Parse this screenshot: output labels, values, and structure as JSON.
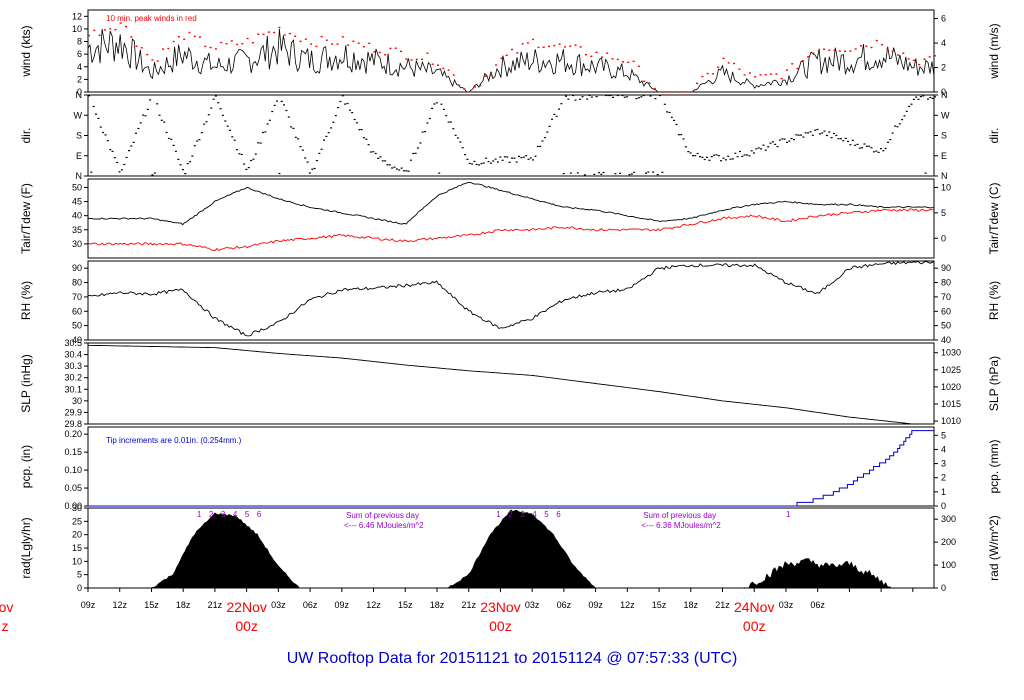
{
  "footer_title": "UW Rooftop Data for 20151121  to  20151124 @ 07:57:33  (UTC)",
  "colors": {
    "series": "#000000",
    "peak": "#ff0000",
    "dew": "#ff0000",
    "precip": "#0000cc",
    "note_blue": "#0000cc",
    "sun_labels": "#9900cc",
    "daylabel": "#ff0000",
    "title": "#0000cc"
  },
  "x_axis": {
    "ticks": [
      "09z",
      "12z",
      "15z",
      "18z",
      "21z",
      "03z",
      "06z",
      "09z",
      "12z",
      "15z",
      "18z",
      "21z",
      "03z",
      "06z",
      "09z",
      "12z",
      "15z",
      "18z",
      "21z",
      "03z",
      "06z"
    ],
    "day_labels": [
      {
        "date": "22Nov",
        "time": "00z"
      },
      {
        "date": "23Nov",
        "time": "00z"
      },
      {
        "date": "24Nov",
        "time": "00z"
      }
    ],
    "edge_label": {
      "date": "ov",
      "time": "z"
    }
  },
  "chart_data": [
    {
      "type": "line",
      "name": "wind",
      "ylabel_left": "wind (kts)",
      "ylabel_right": "wind (m/s)",
      "ylim": [
        0,
        13
      ],
      "yticks_left": [
        0,
        2,
        4,
        6,
        8,
        10,
        12
      ],
      "ylim_right": [
        0,
        6.7
      ],
      "yticks_right": [
        0,
        2,
        4,
        6
      ],
      "annotation": "10 min. peak winds in red",
      "x": [
        0,
        3,
        6,
        9,
        12,
        15,
        18,
        21,
        24,
        27,
        30,
        33,
        36,
        39,
        42,
        45,
        48,
        51,
        54,
        57,
        60,
        63,
        66,
        69,
        72,
        75,
        78
      ],
      "values": [
        7,
        8,
        3,
        6,
        4,
        5,
        7,
        5,
        6,
        5,
        4,
        3,
        0,
        4,
        5,
        5,
        4,
        3,
        0,
        0,
        3,
        1,
        2,
        5,
        5,
        6,
        4
      ],
      "peak": [
        9,
        11,
        5,
        9,
        7,
        8,
        10,
        8,
        8,
        7,
        6,
        5,
        0,
        5,
        8,
        7,
        6,
        5,
        0,
        0,
        5,
        2,
        3,
        7,
        7,
        8,
        5
      ]
    },
    {
      "type": "scatter",
      "name": "dir",
      "ylabel_left": "dir.",
      "ylabel_right": "dir.",
      "ylim": [
        0,
        360
      ],
      "yticks_left": [
        "N",
        "E",
        "S",
        "W",
        "N"
      ],
      "ytick_values": [
        0,
        90,
        180,
        270,
        360
      ],
      "yticks_right": [
        "N",
        "E",
        "S",
        "W",
        "N"
      ],
      "x": [
        0,
        3,
        6,
        9,
        12,
        15,
        18,
        21,
        24,
        27,
        30,
        33,
        36,
        39,
        42,
        45,
        48,
        51,
        54,
        57,
        60,
        63,
        66,
        69,
        72,
        75,
        78
      ],
      "values": [
        360,
        10,
        360,
        10,
        355,
        20,
        360,
        10,
        350,
        90,
        10,
        350,
        60,
        70,
        80,
        350,
        355,
        360,
        350,
        90,
        80,
        110,
        160,
        200,
        150,
        110,
        350
      ]
    },
    {
      "type": "line",
      "name": "temp",
      "ylabel_left": "Tair/Tdew (F)",
      "ylabel_right": "Tair/Tdew (C)",
      "ylim": [
        25,
        53
      ],
      "yticks_left": [
        30,
        35,
        40,
        45,
        50
      ],
      "yticks_right": [
        0,
        5,
        10
      ],
      "series": [
        {
          "name": "Tair",
          "values": [
            39,
            39,
            39,
            37,
            45,
            50,
            46,
            43,
            41,
            39,
            37,
            47,
            52,
            49,
            46,
            43,
            42,
            40,
            38,
            39,
            42,
            44,
            45,
            44,
            44,
            43,
            43
          ]
        },
        {
          "name": "Tdew",
          "values": [
            30,
            30,
            30,
            30,
            28,
            29,
            31,
            32,
            33,
            32,
            31,
            32,
            33,
            35,
            35,
            36,
            35,
            35,
            35,
            37,
            39,
            40,
            38,
            40,
            41,
            42,
            42
          ]
        }
      ],
      "x": [
        0,
        3,
        6,
        9,
        12,
        15,
        18,
        21,
        24,
        27,
        30,
        33,
        36,
        39,
        42,
        45,
        48,
        51,
        54,
        57,
        60,
        63,
        66,
        69,
        72,
        75,
        78
      ]
    },
    {
      "type": "line",
      "name": "rh",
      "ylabel_left": "RH (%)",
      "ylabel_right": "RH (%)",
      "ylim": [
        40,
        95
      ],
      "yticks_left": [
        40,
        50,
        60,
        70,
        80,
        90
      ],
      "yticks_right": [
        40,
        50,
        60,
        70,
        80,
        90
      ],
      "x": [
        0,
        3,
        6,
        9,
        12,
        15,
        18,
        21,
        24,
        27,
        30,
        33,
        36,
        39,
        42,
        45,
        48,
        51,
        54,
        57,
        60,
        63,
        66,
        69,
        72,
        75,
        78
      ],
      "values": [
        70,
        73,
        72,
        75,
        55,
        43,
        52,
        68,
        75,
        76,
        78,
        80,
        60,
        48,
        55,
        68,
        73,
        75,
        90,
        92,
        92,
        92,
        80,
        72,
        90,
        93,
        94
      ]
    },
    {
      "type": "line",
      "name": "slp",
      "ylabel_left": "SLP (inHg)",
      "ylabel_right": "SLP (hPa)",
      "ylim": [
        29.8,
        30.5
      ],
      "yticks_left": [
        29.8,
        29.9,
        30.0,
        30.1,
        30.2,
        30.3,
        30.4,
        30.5
      ],
      "yticks_right": [
        1010,
        1015,
        1020,
        1025,
        1030
      ],
      "x": [
        0,
        6,
        12,
        18,
        24,
        30,
        36,
        42,
        48,
        54,
        60,
        66,
        72,
        78
      ],
      "values": [
        30.48,
        30.47,
        30.46,
        30.41,
        30.37,
        30.31,
        30.26,
        30.22,
        30.15,
        30.08,
        30.0,
        29.94,
        29.86,
        29.8
      ]
    },
    {
      "type": "line",
      "name": "pcp",
      "ylabel_left": "pcp. (in)",
      "ylabel_right": "pcp. (mm)",
      "ylim": [
        0,
        0.22
      ],
      "yticks_left": [
        "0.00",
        "0.05",
        "0.10",
        "0.15",
        "0.20"
      ],
      "yticks_right": [
        0,
        1,
        2,
        3,
        4,
        5
      ],
      "annotation": "Tip increments are 0.01in. (0.254mm.)",
      "x": [
        0,
        66,
        68,
        70,
        72,
        74,
        76,
        78
      ],
      "values": [
        0,
        0,
        0.01,
        0.03,
        0.06,
        0.1,
        0.14,
        0.21
      ]
    },
    {
      "type": "area",
      "name": "rad",
      "ylabel_left": "rad(Lgly/hr)",
      "ylabel_right": "rad (W/m^2)",
      "ylim": [
        0,
        30
      ],
      "yticks_left": [
        0,
        5,
        10,
        15,
        20,
        25,
        30
      ],
      "yticks_right": [
        0,
        100,
        200,
        300
      ],
      "sun_labels": [
        {
          "group": 1,
          "labels": [
            "1",
            "2",
            "3",
            "4",
            "5",
            "6"
          ]
        },
        {
          "group": 2,
          "labels": [
            "1",
            "2",
            "3",
            "4",
            "5",
            "6"
          ]
        },
        {
          "group": 3,
          "labels": [
            "1"
          ]
        }
      ],
      "daily_sum": [
        {
          "line1": "Sum of previous day",
          "line2": "<--- 6.46 MJoules/m^2"
        },
        {
          "line1": "Sum of previous day",
          "line2": "<--- 6.36 MJoules/m^2"
        }
      ],
      "x": [
        6,
        8,
        10,
        12,
        14,
        16,
        18,
        20,
        22,
        34,
        36,
        38,
        40,
        42,
        44,
        46,
        48,
        50,
        62,
        64,
        66,
        68,
        70,
        72,
        74,
        76
      ],
      "values": [
        0,
        5,
        20,
        28,
        27,
        20,
        8,
        0,
        0,
        0,
        5,
        20,
        29,
        28,
        20,
        8,
        0,
        0,
        0,
        4,
        9,
        10,
        8,
        9,
        5,
        0
      ]
    }
  ]
}
